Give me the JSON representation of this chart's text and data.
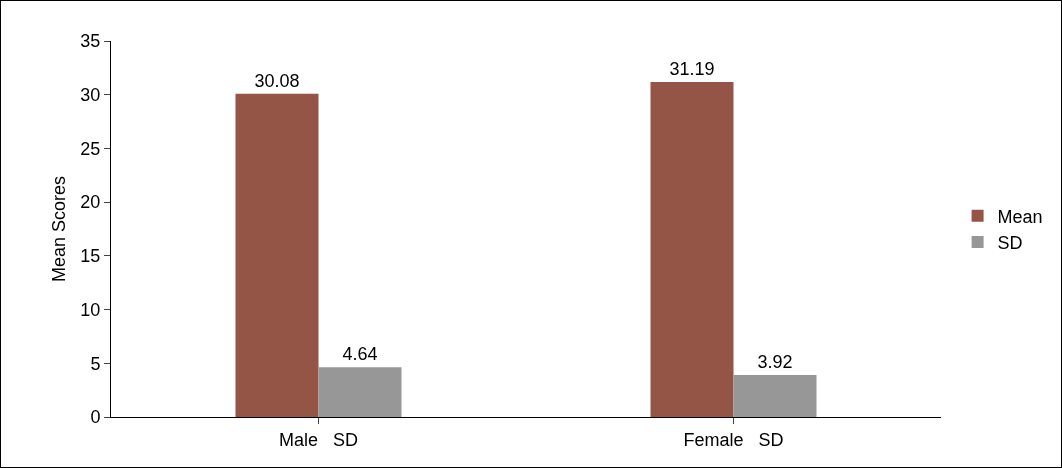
{
  "chart_data": {
    "type": "bar",
    "ylabel": "Mean Scores",
    "categories": [
      "Male   SD",
      "Female   SD"
    ],
    "series": [
      {
        "name": "Mean",
        "color": "#955546",
        "values": [
          30.08,
          31.19
        ]
      },
      {
        "name": "SD",
        "color": "#979797",
        "values": [
          4.64,
          3.92
        ]
      }
    ],
    "ylim": [
      0,
      35
    ],
    "yticks": [
      0,
      5,
      10,
      15,
      20,
      25,
      30,
      35
    ],
    "grid": false,
    "legend": "right",
    "data_labels": true
  }
}
